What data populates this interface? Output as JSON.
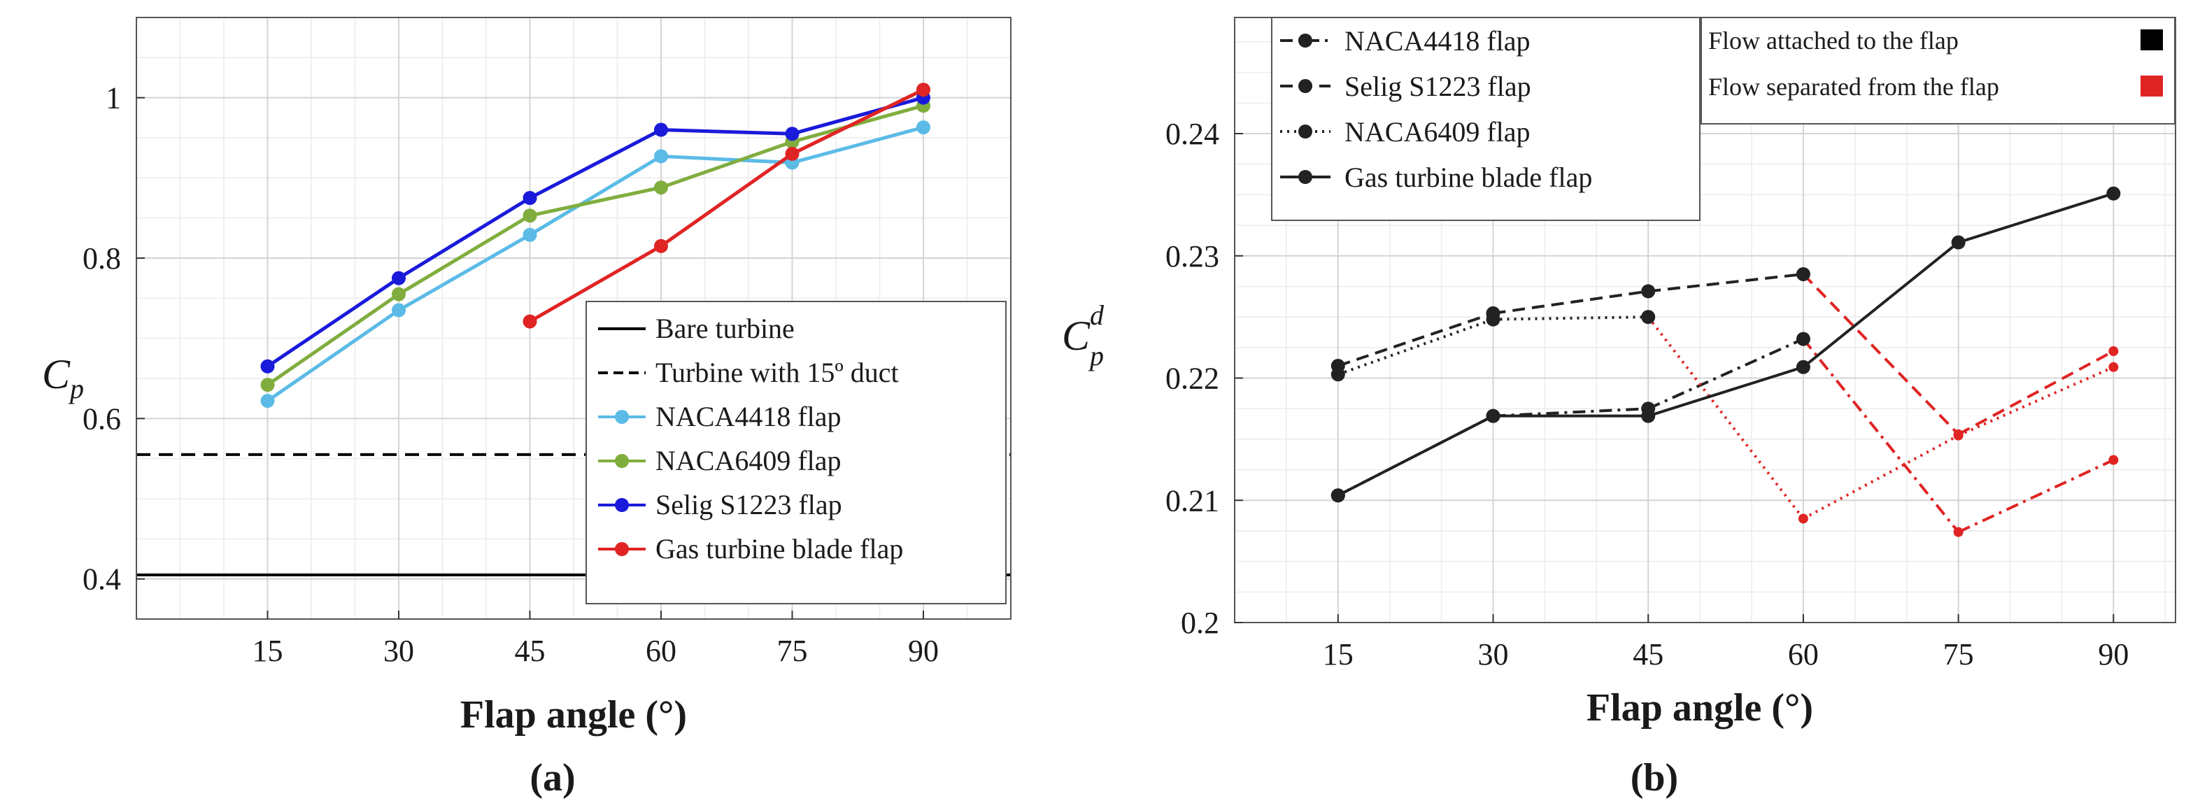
{
  "chart_data": [
    {
      "type": "line",
      "panel_label": "(a)",
      "title": "",
      "xlabel": "Flap angle (°)",
      "ylabel_main": "C",
      "ylabel_sub": "p",
      "x": [
        15,
        30,
        45,
        60,
        75,
        90
      ],
      "xlim": [
        0,
        100
      ],
      "ylim": [
        0.35,
        1.1
      ],
      "xticks": [
        "15",
        "30",
        "45",
        "60",
        "75",
        "90"
      ],
      "yticks": [
        {
          "value": 0.4,
          "label": "0.4"
        },
        {
          "value": 0.6,
          "label": "0.6"
        },
        {
          "value": 0.8,
          "label": "0.8"
        },
        {
          "value": 1.0,
          "label": "1"
        }
      ],
      "grid": true,
      "legend_position": "bottom-right",
      "hlines": [
        {
          "name": "Bare turbine",
          "value": 0.405,
          "color": "#000000",
          "dash": "solid"
        },
        {
          "name": "Turbine with 15º duct",
          "value": 0.555,
          "color": "#000000",
          "dash": "dashed"
        }
      ],
      "series": [
        {
          "name": "NACA4418 flap",
          "color": "#5bbbe6",
          "x": [
            15,
            30,
            45,
            60,
            75,
            90
          ],
          "values": [
            0.622,
            0.735,
            0.829,
            0.927,
            0.919,
            0.963
          ]
        },
        {
          "name": "NACA6409 flap",
          "color": "#80ad3e",
          "x": [
            15,
            30,
            45,
            60,
            75,
            90
          ],
          "values": [
            0.642,
            0.755,
            0.853,
            0.888,
            0.945,
            0.99
          ]
        },
        {
          "name": "Selig S1223 flap",
          "color": "#1a1adb",
          "x": [
            15,
            30,
            45,
            60,
            75,
            90
          ],
          "values": [
            0.665,
            0.775,
            0.875,
            0.96,
            0.955,
            1.0
          ]
        },
        {
          "name": "Gas turbine blade flap",
          "color": "#e02424",
          "x": [
            45,
            60,
            75,
            90
          ],
          "values": [
            0.721,
            0.815,
            0.93,
            1.01
          ]
        }
      ]
    },
    {
      "type": "line",
      "panel_label": "(b)",
      "title": "",
      "xlabel": "Flap angle (°)",
      "ylabel_main": "C",
      "ylabel_sub": "p",
      "ylabel_sup": "d",
      "x": [
        15,
        30,
        45,
        60,
        75,
        90
      ],
      "xlim": [
        5,
        96
      ],
      "ylim": [
        0.2,
        0.2495
      ],
      "xticks": [
        "15",
        "30",
        "45",
        "60",
        "75",
        "90"
      ],
      "yticks": [
        {
          "value": 0.2,
          "label": "0.2"
        },
        {
          "value": 0.21,
          "label": "0.21"
        },
        {
          "value": 0.22,
          "label": "0.22"
        },
        {
          "value": 0.23,
          "label": "0.23"
        },
        {
          "value": 0.24,
          "label": "0.24"
        }
      ],
      "grid": true,
      "legend_position": "top-left",
      "state_legend_position": "top-right",
      "state_legend": [
        {
          "label": "Flow attached to the flap",
          "color": "#000000"
        },
        {
          "label": "Flow separated from the flap",
          "color": "#e02424"
        }
      ],
      "attached_color": "#222222",
      "separated_color": "#e02424",
      "series": [
        {
          "name": "NACA4418 flap",
          "dash": "dashdot",
          "x": [
            15,
            30,
            45,
            60,
            75,
            90
          ],
          "values": [
            0.2104,
            0.2169,
            0.2175,
            0.2232,
            0.2074,
            0.2133
          ],
          "separated_from_index": 3
        },
        {
          "name": "Selig S1223 flap",
          "dash": "dashed",
          "x": [
            15,
            30,
            45,
            60,
            75,
            90
          ],
          "values": [
            0.221,
            0.2253,
            0.2271,
            0.2285,
            0.2154,
            0.2222
          ],
          "separated_from_index": 3
        },
        {
          "name": "NACA6409 flap",
          "dash": "dotted",
          "x": [
            15,
            30,
            45,
            60,
            75,
            90
          ],
          "values": [
            0.2203,
            0.2248,
            0.225,
            0.2085,
            0.2153,
            0.2209
          ],
          "separated_from_index": 2
        },
        {
          "name": "Gas turbine blade flap",
          "dash": "solid",
          "x": [
            15,
            30,
            45,
            60,
            75,
            90
          ],
          "values": [
            0.2104,
            0.2169,
            0.2169,
            0.2209,
            0.2311,
            0.2351
          ],
          "separated_from_index": null
        }
      ]
    }
  ]
}
